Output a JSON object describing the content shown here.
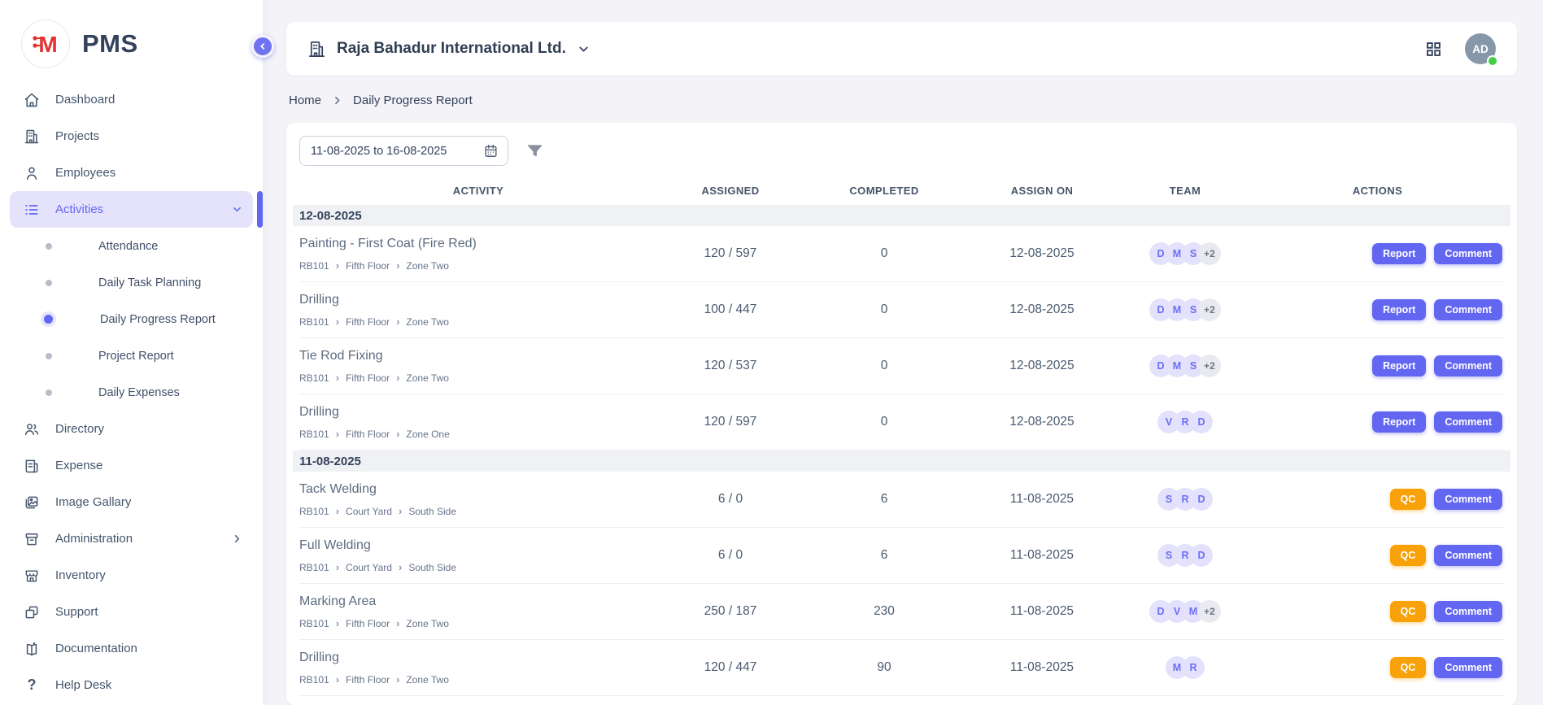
{
  "app": {
    "name": "PMS",
    "logo_letter": "M"
  },
  "colors": {
    "accent": "#6366f1",
    "accent_light": "#e4e3fb",
    "qc_orange": "#f9a109",
    "logo_red": "#e23232",
    "presence_green": "#43cf43"
  },
  "sidebar": {
    "dashboard": "Dashboard",
    "projects": "Projects",
    "employees": "Employees",
    "activities": "Activities",
    "attendance": "Attendance",
    "daily_task_planning": "Daily Task Planning",
    "daily_progress_report": "Daily Progress Report",
    "project_report": "Project Report",
    "daily_expenses": "Daily Expenses",
    "directory": "Directory",
    "expense": "Expense",
    "image_gallary": "Image Gallary",
    "administration": "Administration",
    "inventory": "Inventory",
    "support": "Support",
    "documentation": "Documentation",
    "help_desk": "Help Desk"
  },
  "header": {
    "company": "Raja Bahadur International Ltd.",
    "avatar_initials": "AD"
  },
  "breadcrumb": {
    "home": "Home",
    "current": "Daily Progress Report"
  },
  "filters": {
    "date_range": "11-08-2025 to 16-08-2025"
  },
  "table": {
    "columns": [
      "ACTIVITY",
      "ASSIGNED",
      "COMPLETED",
      "ASSIGN ON",
      "TEAM",
      "ACTIONS"
    ],
    "groups": [
      {
        "date": "12-08-2025",
        "rows": [
          {
            "activity": "Painting - First Coat (Fire Red)",
            "path": [
              "RB101",
              "Fifth Floor",
              "Zone Two"
            ],
            "assigned": "120 / 597",
            "completed": "0",
            "assign_on": "12-08-2025",
            "team": [
              "D",
              "M",
              "S"
            ],
            "team_extra": "+2",
            "primary_action": "Report",
            "comment_action": "Comment"
          },
          {
            "activity": "Drilling",
            "path": [
              "RB101",
              "Fifth Floor",
              "Zone Two"
            ],
            "assigned": "100 / 447",
            "completed": "0",
            "assign_on": "12-08-2025",
            "team": [
              "D",
              "M",
              "S"
            ],
            "team_extra": "+2",
            "primary_action": "Report",
            "comment_action": "Comment"
          },
          {
            "activity": "Tie Rod Fixing",
            "path": [
              "RB101",
              "Fifth Floor",
              "Zone Two"
            ],
            "assigned": "120 / 537",
            "completed": "0",
            "assign_on": "12-08-2025",
            "team": [
              "D",
              "M",
              "S"
            ],
            "team_extra": "+2",
            "primary_action": "Report",
            "comment_action": "Comment"
          },
          {
            "activity": "Drilling",
            "path": [
              "RB101",
              "Fifth Floor",
              "Zone One"
            ],
            "assigned": "120 / 597",
            "completed": "0",
            "assign_on": "12-08-2025",
            "team": [
              "V",
              "R",
              "D"
            ],
            "team_extra": null,
            "primary_action": "Report",
            "comment_action": "Comment"
          }
        ]
      },
      {
        "date": "11-08-2025",
        "rows": [
          {
            "activity": "Tack Welding",
            "path": [
              "RB101",
              "Court Yard",
              "South Side"
            ],
            "assigned": "6 / 0",
            "completed": "6",
            "assign_on": "11-08-2025",
            "team": [
              "S",
              "R",
              "D"
            ],
            "team_extra": null,
            "primary_action": "QC",
            "comment_action": "Comment"
          },
          {
            "activity": "Full Welding",
            "path": [
              "RB101",
              "Court Yard",
              "South Side"
            ],
            "assigned": "6 / 0",
            "completed": "6",
            "assign_on": "11-08-2025",
            "team": [
              "S",
              "R",
              "D"
            ],
            "team_extra": null,
            "primary_action": "QC",
            "comment_action": "Comment"
          },
          {
            "activity": "Marking Area",
            "path": [
              "RB101",
              "Fifth Floor",
              "Zone Two"
            ],
            "assigned": "250 / 187",
            "completed": "230",
            "assign_on": "11-08-2025",
            "team": [
              "D",
              "V",
              "M"
            ],
            "team_extra": "+2",
            "primary_action": "QC",
            "comment_action": "Comment"
          },
          {
            "activity": "Drilling",
            "path": [
              "RB101",
              "Fifth Floor",
              "Zone Two"
            ],
            "assigned": "120 / 447",
            "completed": "90",
            "assign_on": "11-08-2025",
            "team": [
              "M",
              "R"
            ],
            "team_extra": null,
            "primary_action": "QC",
            "comment_action": "Comment"
          }
        ]
      }
    ]
  }
}
